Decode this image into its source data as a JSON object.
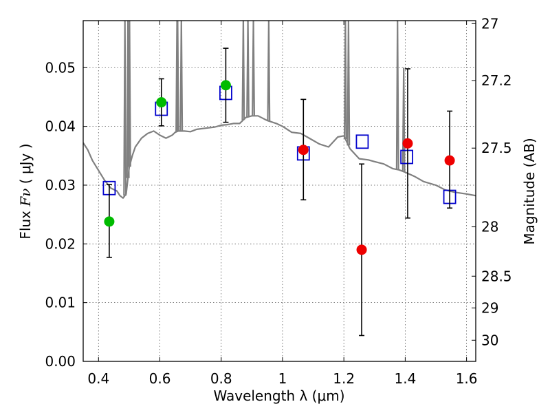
{
  "chart_data": {
    "type": "scatter",
    "title": "",
    "xlabel": "Wavelength  λ (μm)",
    "ylabel_prefix": "Flux  ",
    "ylabel_symbol": "Fν",
    "ylabel_suffix": "  ( μJy )",
    "y2label": "Magnitude (AB)",
    "xlim": [
      0.35,
      1.63
    ],
    "ylim": [
      0.0,
      0.058
    ],
    "grid": true,
    "xticks": [
      {
        "value": 0.4,
        "label": "0.4"
      },
      {
        "value": 0.6,
        "label": "0.6"
      },
      {
        "value": 0.8,
        "label": "0.8"
      },
      {
        "value": 1.0,
        "label": "1"
      },
      {
        "value": 1.2,
        "label": "1.2"
      },
      {
        "value": 1.4,
        "label": "1.4"
      },
      {
        "value": 1.6,
        "label": "1.6"
      }
    ],
    "yticks": [
      {
        "value": 0.0,
        "label": "0.00"
      },
      {
        "value": 0.01,
        "label": "0.01"
      },
      {
        "value": 0.02,
        "label": "0.02"
      },
      {
        "value": 0.03,
        "label": "0.03"
      },
      {
        "value": 0.04,
        "label": "0.04"
      },
      {
        "value": 0.05,
        "label": "0.05"
      }
    ],
    "magnitude_ticks": [
      {
        "label": "27",
        "flux": 0.0575
      },
      {
        "label": "27.2",
        "flux": 0.0478
      },
      {
        "label": "27.5",
        "flux": 0.0363
      },
      {
        "label": "28",
        "flux": 0.0229
      },
      {
        "label": "28.5",
        "flux": 0.0145
      },
      {
        "label": "29",
        "flux": 0.0091
      },
      {
        "label": "30",
        "flux": 0.0036
      }
    ],
    "colors": {
      "model": "#808080",
      "green": "#00bb00",
      "red": "#ee0000",
      "blue": "#0000cc",
      "errorbar": "#000000",
      "grid": "#555555"
    },
    "series": [
      {
        "name": "green-points",
        "x": [
          0.435,
          0.605,
          0.815
        ],
        "y": [
          0.0238,
          0.0441,
          0.047
        ],
        "yerr_low": [
          0.0177,
          0.0401,
          0.0407
        ],
        "yerr_high": [
          0.0301,
          0.0481,
          0.0533
        ]
      },
      {
        "name": "red-points",
        "x": [
          1.068,
          1.258,
          1.408,
          1.545
        ],
        "y": [
          0.036,
          0.019,
          0.0371,
          0.0342
        ],
        "yerr_low": [
          0.0275,
          0.0044,
          0.0244,
          0.0261
        ],
        "yerr_high": [
          0.0446,
          0.0336,
          0.0498,
          0.0426
        ]
      },
      {
        "name": "model-boxes",
        "x": [
          0.435,
          0.605,
          0.815,
          1.068,
          1.26,
          1.405,
          1.545
        ],
        "y": [
          0.0295,
          0.043,
          0.0457,
          0.0354,
          0.0374,
          0.0348,
          0.028
        ]
      }
    ],
    "model_spectrum": {
      "x": [
        0.35,
        0.365,
        0.38,
        0.4,
        0.42,
        0.44,
        0.46,
        0.47,
        0.48,
        0.49,
        0.5,
        0.51,
        0.52,
        0.54,
        0.56,
        0.58,
        0.6,
        0.62,
        0.64,
        0.65,
        0.66,
        0.68,
        0.7,
        0.72,
        0.75,
        0.78,
        0.8,
        0.82,
        0.84,
        0.86,
        0.88,
        0.9,
        0.92,
        0.95,
        0.98,
        1.0,
        1.03,
        1.06,
        1.09,
        1.12,
        1.15,
        1.18,
        1.2,
        1.22,
        1.25,
        1.28,
        1.3,
        1.33,
        1.36,
        1.38,
        1.4,
        1.43,
        1.46,
        1.5,
        1.53,
        1.56,
        1.6,
        1.63
      ],
      "y": [
        0.0372,
        0.036,
        0.0342,
        0.0325,
        0.0308,
        0.0295,
        0.029,
        0.0282,
        0.0278,
        0.0285,
        0.033,
        0.035,
        0.0365,
        0.038,
        0.0388,
        0.0392,
        0.0385,
        0.038,
        0.0385,
        0.039,
        0.0392,
        0.0392,
        0.0391,
        0.0395,
        0.0397,
        0.0399,
        0.0402,
        0.0403,
        0.0405,
        0.0405,
        0.0415,
        0.0418,
        0.0418,
        0.041,
        0.0405,
        0.04,
        0.039,
        0.0388,
        0.0379,
        0.037,
        0.0365,
        0.0382,
        0.0384,
        0.0362,
        0.0345,
        0.0343,
        0.034,
        0.0336,
        0.0328,
        0.0326,
        0.0322,
        0.0315,
        0.0306,
        0.03,
        0.0292,
        0.0288,
        0.0285,
        0.0282
      ]
    },
    "emission_lines": [
      {
        "x": 0.486,
        "peak": 0.058
      },
      {
        "x": 0.496,
        "peak": 0.058
      },
      {
        "x": 0.501,
        "peak": 0.058
      },
      {
        "x": 0.5007,
        "peak": 0.052
      },
      {
        "x": 0.656,
        "peak": 0.058
      },
      {
        "x": 0.658,
        "peak": 0.058
      },
      {
        "x": 0.67,
        "peak": 0.058
      },
      {
        "x": 0.872,
        "peak": 0.058
      },
      {
        "x": 0.887,
        "peak": 0.058
      },
      {
        "x": 0.905,
        "peak": 0.058
      },
      {
        "x": 0.955,
        "peak": 0.058
      },
      {
        "x": 1.205,
        "peak": 0.058
      },
      {
        "x": 1.215,
        "peak": 0.058
      },
      {
        "x": 1.375,
        "peak": 0.058
      },
      {
        "x": 1.395,
        "peak": 0.05
      }
    ]
  }
}
